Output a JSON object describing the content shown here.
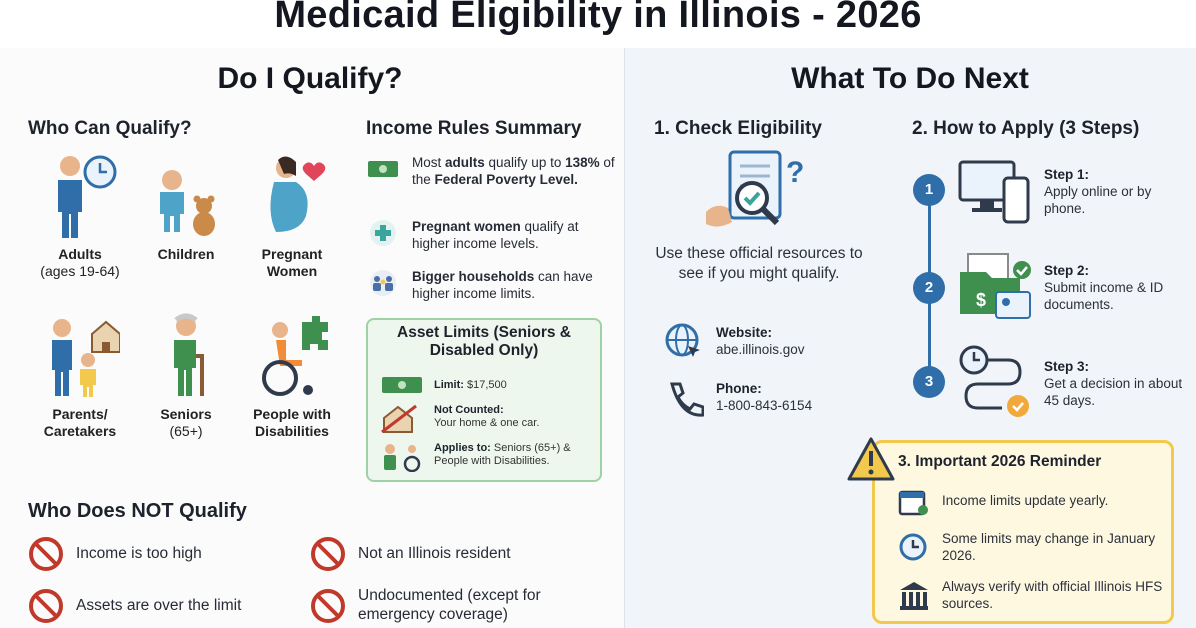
{
  "title": "Medicaid Eligibility in Illinois - 2026",
  "left": {
    "heading": "Do I Qualify?",
    "who_can": {
      "heading": "Who Can Qualify?",
      "groups": [
        {
          "label": "Adults",
          "sub": "(ages 19-64)"
        },
        {
          "label": "Children",
          "sub": ""
        },
        {
          "label": "Pregnant",
          "sub": "Women"
        },
        {
          "label": "Parents/",
          "sub": "Caretakers"
        },
        {
          "label": "Seniors",
          "sub": "(65+)"
        },
        {
          "label": "People with",
          "sub": "Disabilities"
        }
      ]
    },
    "income": {
      "heading": "Income Rules Summary",
      "rules": [
        {
          "pre": "Most ",
          "bold": "adults",
          "post": " qualify up to ",
          "bold2": "138%",
          "post2": " of the ",
          "bold3": "Federal Poverty Level."
        },
        {
          "pre": "",
          "bold": "Pregnant women",
          "post": " qualify at higher income levels.",
          "bold2": "",
          "post2": "",
          "bold3": ""
        },
        {
          "pre": "",
          "bold": "Bigger households",
          "post": " can have higher income limits.",
          "bold2": "",
          "post2": "",
          "bold3": ""
        }
      ]
    },
    "assets": {
      "title": "Asset Limits (Seniors & Disabled Only)",
      "rows": [
        {
          "label": "Limit:",
          "value": " $17,500"
        },
        {
          "label": "Not Counted:",
          "value": " Your home & one car."
        },
        {
          "label": "Applies to:",
          "value": " Seniors (65+) & People with Disabilities."
        }
      ]
    },
    "not_qualify": {
      "heading": "Who Does NOT Qualify",
      "items": [
        "Income is too high",
        "Not an Illinois resident",
        "Assets are over the limit",
        "Undocumented (except for emergency coverage)"
      ]
    }
  },
  "right": {
    "heading": "What To Do Next",
    "check": {
      "heading": "1. Check Eligibility",
      "text": "Use these official resources to see if you might qualify.",
      "website_label": "Website:",
      "website": "abe.illinois.gov",
      "phone_label": "Phone:",
      "phone": "1-800-843-6154"
    },
    "apply": {
      "heading": "2. How to Apply (3 Steps)",
      "steps": [
        {
          "num": "1",
          "label": "Step 1:",
          "text": "Apply online or by phone."
        },
        {
          "num": "2",
          "label": "Step 2:",
          "text": "Submit income & ID documents."
        },
        {
          "num": "3",
          "label": "Step 3:",
          "text": "Get a decision in about 45 days."
        }
      ]
    },
    "reminder": {
      "title": "3. Important 2026 Reminder",
      "items": [
        "Income limits update yearly.",
        "Some limits may change in January 2026.",
        "Always verify with official Illinois HFS sources."
      ]
    }
  },
  "colors": {
    "primary_blue": "#2f6ea8",
    "green": "#3f8f4f",
    "warning_yellow": "#f2c94c",
    "stop_red": "#c0392b"
  }
}
